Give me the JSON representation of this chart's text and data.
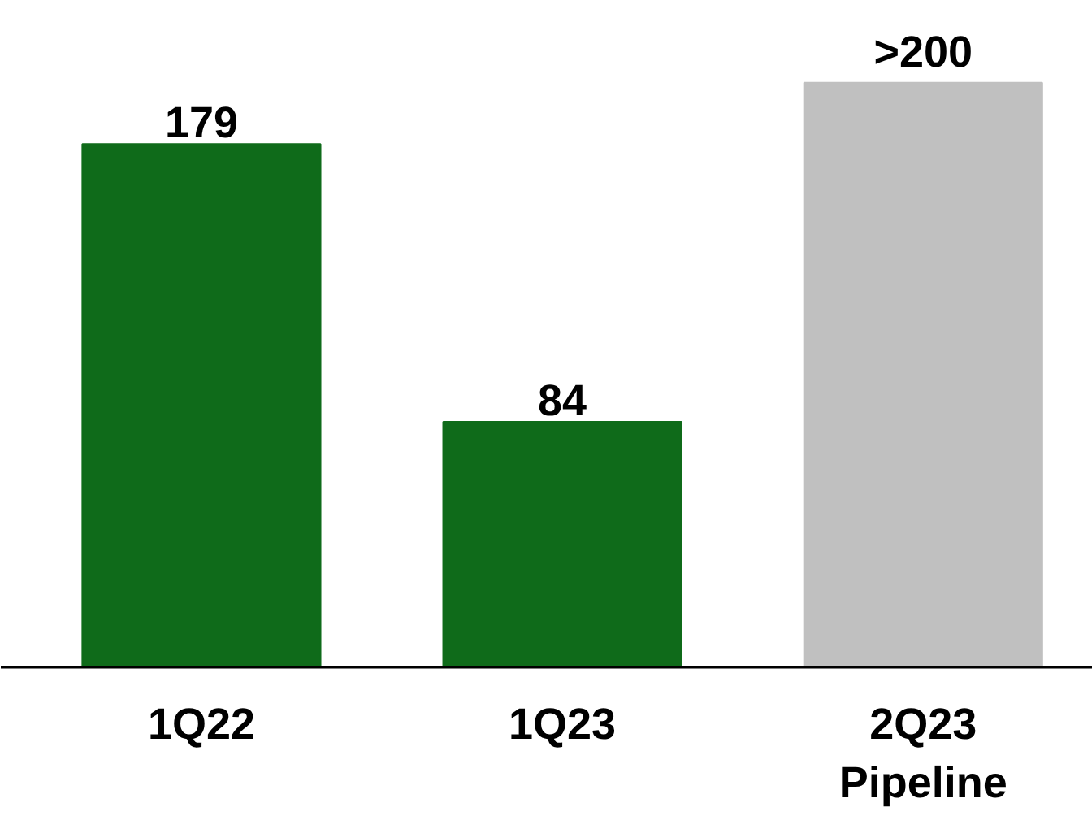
{
  "chart_data": {
    "type": "bar",
    "categories": [
      "1Q22",
      "1Q23",
      "2Q23\nPipeline"
    ],
    "values": [
      179,
      84,
      200
    ],
    "colors": [
      "#0f6b1a",
      "#0f6b1a",
      "#c0c0c0"
    ],
    "value_labels": [
      "179",
      "84",
      ">200"
    ]
  }
}
